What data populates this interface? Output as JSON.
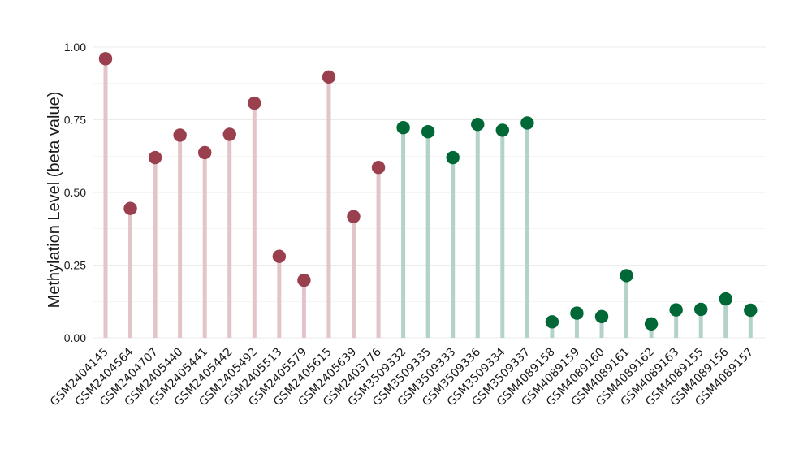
{
  "chart_data": {
    "type": "lollipop",
    "title": "",
    "xlabel": "",
    "ylabel": "Methylation Level (beta value)",
    "ylim": [
      0,
      1.0
    ],
    "yticks": [
      "0.00",
      "0.25",
      "0.50",
      "0.75",
      "1.00"
    ],
    "grid": true,
    "colors": {
      "group1_point": "#9a3f4d",
      "group1_stem": "#e2c4c9",
      "group2_point": "#006837",
      "group2_stem": "#b3d2c8",
      "grid": "#ebebeb"
    },
    "points": [
      {
        "sample": "GSM2404145",
        "value": 0.96,
        "group": 1
      },
      {
        "sample": "GSM2404564",
        "value": 0.445,
        "group": 1
      },
      {
        "sample": "GSM2404707",
        "value": 0.62,
        "group": 1
      },
      {
        "sample": "GSM2405440",
        "value": 0.697,
        "group": 1
      },
      {
        "sample": "GSM2405441",
        "value": 0.637,
        "group": 1
      },
      {
        "sample": "GSM2405442",
        "value": 0.7,
        "group": 1
      },
      {
        "sample": "GSM2405492",
        "value": 0.807,
        "group": 1
      },
      {
        "sample": "GSM2405513",
        "value": 0.28,
        "group": 1
      },
      {
        "sample": "GSM2405579",
        "value": 0.198,
        "group": 1
      },
      {
        "sample": "GSM2405615",
        "value": 0.897,
        "group": 1
      },
      {
        "sample": "GSM2405639",
        "value": 0.417,
        "group": 1
      },
      {
        "sample": "GSM2403776",
        "value": 0.586,
        "group": 1
      },
      {
        "sample": "GSM3509332",
        "value": 0.723,
        "group": 2
      },
      {
        "sample": "GSM3509335",
        "value": 0.709,
        "group": 2
      },
      {
        "sample": "GSM3509333",
        "value": 0.62,
        "group": 2
      },
      {
        "sample": "GSM3509336",
        "value": 0.734,
        "group": 2
      },
      {
        "sample": "GSM3509334",
        "value": 0.714,
        "group": 2
      },
      {
        "sample": "GSM3509337",
        "value": 0.739,
        "group": 2
      },
      {
        "sample": "GSM4089158",
        "value": 0.055,
        "group": 2
      },
      {
        "sample": "GSM4089159",
        "value": 0.085,
        "group": 2
      },
      {
        "sample": "GSM4089160",
        "value": 0.073,
        "group": 2
      },
      {
        "sample": "GSM4089161",
        "value": 0.214,
        "group": 2
      },
      {
        "sample": "GSM4089162",
        "value": 0.048,
        "group": 2
      },
      {
        "sample": "GSM4089163",
        "value": 0.096,
        "group": 2
      },
      {
        "sample": "GSM4089155",
        "value": 0.098,
        "group": 2
      },
      {
        "sample": "GSM4089156",
        "value": 0.134,
        "group": 2
      },
      {
        "sample": "GSM4089157",
        "value": 0.095,
        "group": 2
      }
    ]
  }
}
